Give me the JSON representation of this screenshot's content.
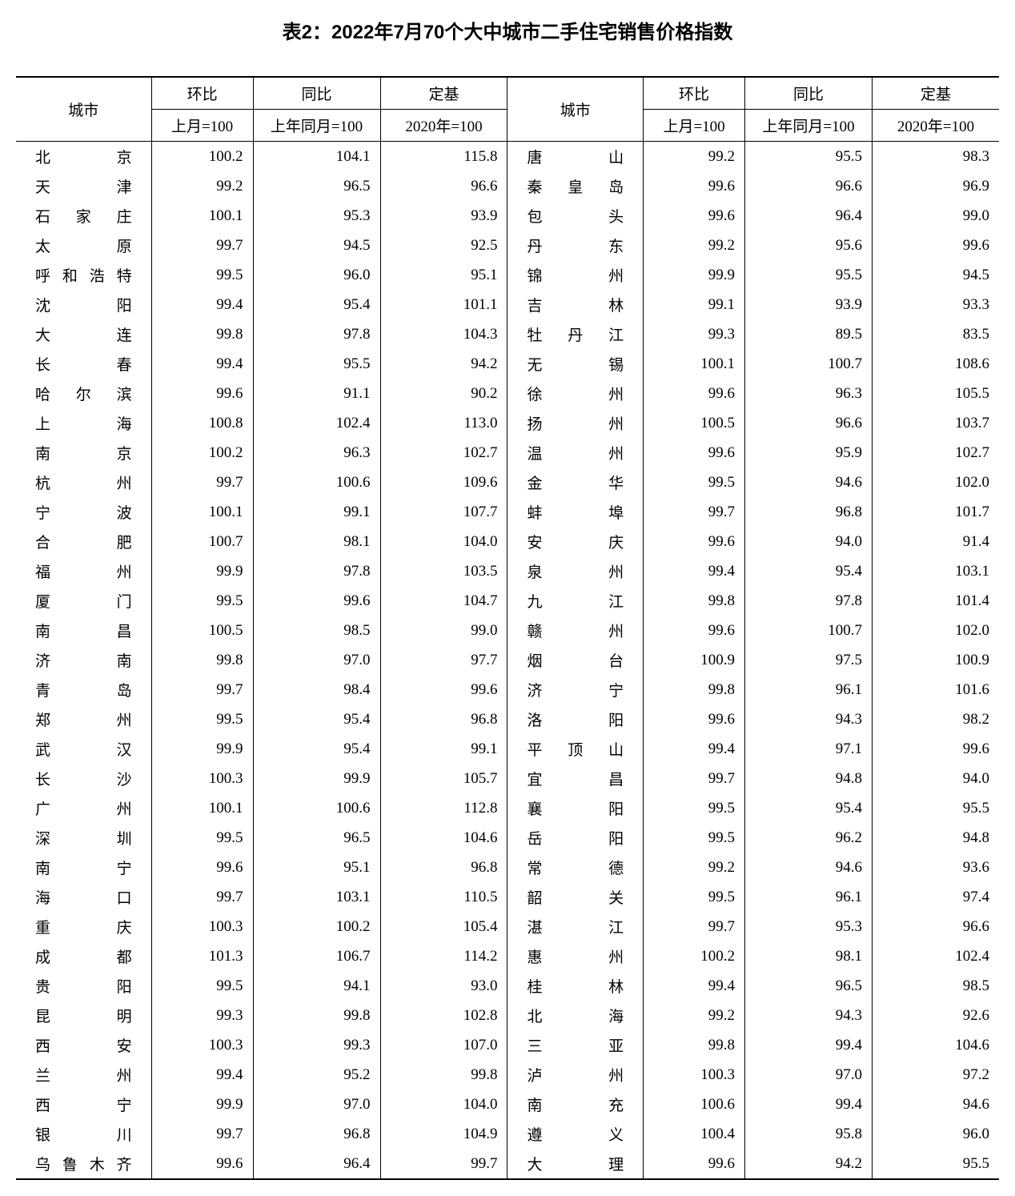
{
  "title": "表2：2022年7月70个大中城市二手住宅销售价格指数",
  "headers": {
    "city": "城市",
    "mom": "环比",
    "yoy": "同比",
    "base": "定基",
    "mom_sub": "上月=100",
    "yoy_sub": "上年同月=100",
    "base_sub": "2020年=100"
  },
  "style": {
    "background_color": "#ffffff",
    "text_color": "#000000",
    "border_color": "#000000",
    "title_fontsize": 24,
    "body_fontsize": 19,
    "title_font": "SimHei",
    "body_font": "SimSun"
  },
  "left_rows": [
    {
      "city": "北京",
      "mom": "100.2",
      "yoy": "104.1",
      "base": "115.8"
    },
    {
      "city": "天津",
      "mom": "99.2",
      "yoy": "96.5",
      "base": "96.6"
    },
    {
      "city": "石家庄",
      "mom": "100.1",
      "yoy": "95.3",
      "base": "93.9"
    },
    {
      "city": "太原",
      "mom": "99.7",
      "yoy": "94.5",
      "base": "92.5"
    },
    {
      "city": "呼和浩特",
      "mom": "99.5",
      "yoy": "96.0",
      "base": "95.1"
    },
    {
      "city": "沈阳",
      "mom": "99.4",
      "yoy": "95.4",
      "base": "101.1"
    },
    {
      "city": "大连",
      "mom": "99.8",
      "yoy": "97.8",
      "base": "104.3"
    },
    {
      "city": "长春",
      "mom": "99.4",
      "yoy": "95.5",
      "base": "94.2"
    },
    {
      "city": "哈尔滨",
      "mom": "99.6",
      "yoy": "91.1",
      "base": "90.2"
    },
    {
      "city": "上海",
      "mom": "100.8",
      "yoy": "102.4",
      "base": "113.0"
    },
    {
      "city": "南京",
      "mom": "100.2",
      "yoy": "96.3",
      "base": "102.7"
    },
    {
      "city": "杭州",
      "mom": "99.7",
      "yoy": "100.6",
      "base": "109.6"
    },
    {
      "city": "宁波",
      "mom": "100.1",
      "yoy": "99.1",
      "base": "107.7"
    },
    {
      "city": "合肥",
      "mom": "100.7",
      "yoy": "98.1",
      "base": "104.0"
    },
    {
      "city": "福州",
      "mom": "99.9",
      "yoy": "97.8",
      "base": "103.5"
    },
    {
      "city": "厦门",
      "mom": "99.5",
      "yoy": "99.6",
      "base": "104.7"
    },
    {
      "city": "南昌",
      "mom": "100.5",
      "yoy": "98.5",
      "base": "99.0"
    },
    {
      "city": "济南",
      "mom": "99.8",
      "yoy": "97.0",
      "base": "97.7"
    },
    {
      "city": "青岛",
      "mom": "99.7",
      "yoy": "98.4",
      "base": "99.6"
    },
    {
      "city": "郑州",
      "mom": "99.5",
      "yoy": "95.4",
      "base": "96.8"
    },
    {
      "city": "武汉",
      "mom": "99.9",
      "yoy": "95.4",
      "base": "99.1"
    },
    {
      "city": "长沙",
      "mom": "100.3",
      "yoy": "99.9",
      "base": "105.7"
    },
    {
      "city": "广州",
      "mom": "100.1",
      "yoy": "100.6",
      "base": "112.8"
    },
    {
      "city": "深圳",
      "mom": "99.5",
      "yoy": "96.5",
      "base": "104.6"
    },
    {
      "city": "南宁",
      "mom": "99.6",
      "yoy": "95.1",
      "base": "96.8"
    },
    {
      "city": "海口",
      "mom": "99.7",
      "yoy": "103.1",
      "base": "110.5"
    },
    {
      "city": "重庆",
      "mom": "100.3",
      "yoy": "100.2",
      "base": "105.4"
    },
    {
      "city": "成都",
      "mom": "101.3",
      "yoy": "106.7",
      "base": "114.2"
    },
    {
      "city": "贵阳",
      "mom": "99.5",
      "yoy": "94.1",
      "base": "93.0"
    },
    {
      "city": "昆明",
      "mom": "99.3",
      "yoy": "99.8",
      "base": "102.8"
    },
    {
      "city": "西安",
      "mom": "100.3",
      "yoy": "99.3",
      "base": "107.0"
    },
    {
      "city": "兰州",
      "mom": "99.4",
      "yoy": "95.2",
      "base": "99.8"
    },
    {
      "city": "西宁",
      "mom": "99.9",
      "yoy": "97.0",
      "base": "104.0"
    },
    {
      "city": "银川",
      "mom": "99.7",
      "yoy": "96.8",
      "base": "104.9"
    },
    {
      "city": "乌鲁木齐",
      "mom": "99.6",
      "yoy": "96.4",
      "base": "99.7"
    }
  ],
  "right_rows": [
    {
      "city": "唐山",
      "mom": "99.2",
      "yoy": "95.5",
      "base": "98.3"
    },
    {
      "city": "秦皇岛",
      "mom": "99.6",
      "yoy": "96.6",
      "base": "96.9"
    },
    {
      "city": "包头",
      "mom": "99.6",
      "yoy": "96.4",
      "base": "99.0"
    },
    {
      "city": "丹东",
      "mom": "99.2",
      "yoy": "95.6",
      "base": "99.6"
    },
    {
      "city": "锦州",
      "mom": "99.9",
      "yoy": "95.5",
      "base": "94.5"
    },
    {
      "city": "吉林",
      "mom": "99.1",
      "yoy": "93.9",
      "base": "93.3"
    },
    {
      "city": "牡丹江",
      "mom": "99.3",
      "yoy": "89.5",
      "base": "83.5"
    },
    {
      "city": "无锡",
      "mom": "100.1",
      "yoy": "100.7",
      "base": "108.6"
    },
    {
      "city": "徐州",
      "mom": "99.6",
      "yoy": "96.3",
      "base": "105.5"
    },
    {
      "city": "扬州",
      "mom": "100.5",
      "yoy": "96.6",
      "base": "103.7"
    },
    {
      "city": "温州",
      "mom": "99.6",
      "yoy": "95.9",
      "base": "102.7"
    },
    {
      "city": "金华",
      "mom": "99.5",
      "yoy": "94.6",
      "base": "102.0"
    },
    {
      "city": "蚌埠",
      "mom": "99.7",
      "yoy": "96.8",
      "base": "101.7"
    },
    {
      "city": "安庆",
      "mom": "99.6",
      "yoy": "94.0",
      "base": "91.4"
    },
    {
      "city": "泉州",
      "mom": "99.4",
      "yoy": "95.4",
      "base": "103.1"
    },
    {
      "city": "九江",
      "mom": "99.8",
      "yoy": "97.8",
      "base": "101.4"
    },
    {
      "city": "赣州",
      "mom": "99.6",
      "yoy": "100.7",
      "base": "102.0"
    },
    {
      "city": "烟台",
      "mom": "100.9",
      "yoy": "97.5",
      "base": "100.9"
    },
    {
      "city": "济宁",
      "mom": "99.8",
      "yoy": "96.1",
      "base": "101.6"
    },
    {
      "city": "洛阳",
      "mom": "99.6",
      "yoy": "94.3",
      "base": "98.2"
    },
    {
      "city": "平顶山",
      "mom": "99.4",
      "yoy": "97.1",
      "base": "99.6"
    },
    {
      "city": "宜昌",
      "mom": "99.7",
      "yoy": "94.8",
      "base": "94.0"
    },
    {
      "city": "襄阳",
      "mom": "99.5",
      "yoy": "95.4",
      "base": "95.5"
    },
    {
      "city": "岳阳",
      "mom": "99.5",
      "yoy": "96.2",
      "base": "94.8"
    },
    {
      "city": "常德",
      "mom": "99.2",
      "yoy": "94.6",
      "base": "93.6"
    },
    {
      "city": "韶关",
      "mom": "99.5",
      "yoy": "96.1",
      "base": "97.4"
    },
    {
      "city": "湛江",
      "mom": "99.7",
      "yoy": "95.3",
      "base": "96.6"
    },
    {
      "city": "惠州",
      "mom": "100.2",
      "yoy": "98.1",
      "base": "102.4"
    },
    {
      "city": "桂林",
      "mom": "99.4",
      "yoy": "96.5",
      "base": "98.5"
    },
    {
      "city": "北海",
      "mom": "99.2",
      "yoy": "94.3",
      "base": "92.6"
    },
    {
      "city": "三亚",
      "mom": "99.8",
      "yoy": "99.4",
      "base": "104.6"
    },
    {
      "city": "泸州",
      "mom": "100.3",
      "yoy": "97.0",
      "base": "97.2"
    },
    {
      "city": "南充",
      "mom": "100.6",
      "yoy": "99.4",
      "base": "94.6"
    },
    {
      "city": "遵义",
      "mom": "100.4",
      "yoy": "95.8",
      "base": "96.0"
    },
    {
      "city": "大理",
      "mom": "99.6",
      "yoy": "94.2",
      "base": "95.5"
    }
  ]
}
